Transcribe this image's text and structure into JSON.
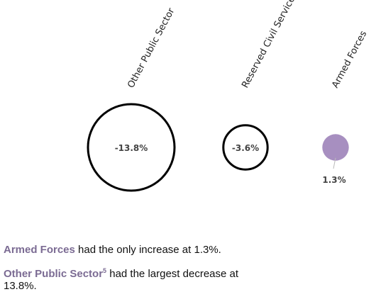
{
  "chart_data": {
    "type": "bubble",
    "title": "",
    "categories": [
      "Other Public Sector",
      "Reserved Civil Service",
      "Armed Forces"
    ],
    "values": [
      -13.8,
      -3.6,
      1.3
    ],
    "value_labels": [
      "-13.8%",
      "-3.6%",
      "1.3%"
    ],
    "unit": "%",
    "colors": {
      "decrease_stroke": "#000000",
      "decrease_fill": "#ffffff",
      "increase_fill": "#a78fc0",
      "label": "#444444"
    },
    "legend": "none",
    "grid": false
  },
  "notes": {
    "line1": {
      "highlight": "Armed Forces",
      "rest": " had the only increase at 1.3%."
    },
    "line2": {
      "highlight": "Other Public Sector",
      "footnote": "5",
      "rest": " had the largest decrease at 13.8%."
    },
    "highlight_color": "#7b6b93"
  }
}
